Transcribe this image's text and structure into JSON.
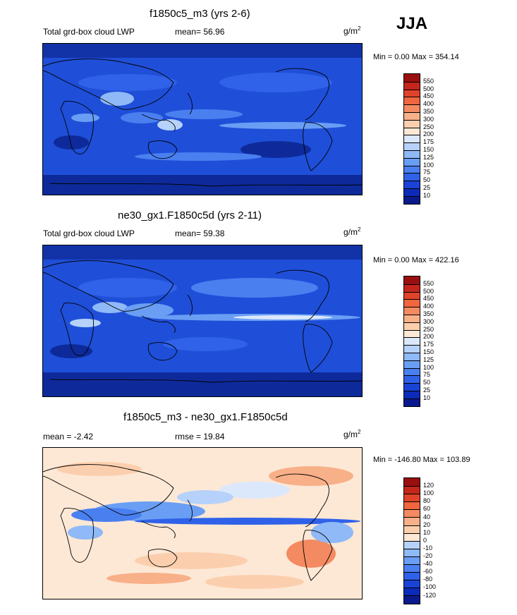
{
  "season": "JJA",
  "colors": {
    "abs_scale": [
      "#0a1a8c",
      "#0b2bb8",
      "#1a43d6",
      "#2f62e8",
      "#4a7ff0",
      "#6a9ef4",
      "#8fb9f7",
      "#b6d2fa",
      "#dbe8fc",
      "#fde8d6",
      "#fbcfae",
      "#f8b088",
      "#f48a61",
      "#ef6640",
      "#e0432a",
      "#c4261c",
      "#9a0f10"
    ],
    "diff_scale": [
      "#0a1a8c",
      "#0b2bb8",
      "#1a43d6",
      "#2f62e8",
      "#4a7ff0",
      "#6a9ef4",
      "#8fb9f7",
      "#b6d2fa",
      "#dbe8fc",
      "#fde8d6",
      "#fbcfae",
      "#f8b088",
      "#f48a61",
      "#ef6640",
      "#e0432a",
      "#c4261c",
      "#9a0f10"
    ]
  },
  "panels": [
    {
      "title": "f1850c5_m3 (yrs 2-6)",
      "left_label": "Total grd-box cloud LWP",
      "mean_label": "mean=  56.96",
      "units": "g/m",
      "units_sup": "2",
      "minmax": "Min =   0.00 Max = 354.14",
      "levels": [
        "550",
        "500",
        "450",
        "400",
        "350",
        "300",
        "250",
        "200",
        "175",
        "150",
        "125",
        "100",
        "75",
        "50",
        "25",
        "10"
      ],
      "mean_value": 56.96
    },
    {
      "title": "ne30_gx1.F1850c5d (yrs 2-11)",
      "left_label": "Total grd-box cloud LWP",
      "mean_label": "mean=  59.38",
      "units": "g/m",
      "units_sup": "2",
      "minmax": "Min =   0.00 Max = 422.16",
      "levels": [
        "550",
        "500",
        "450",
        "400",
        "350",
        "300",
        "250",
        "200",
        "175",
        "150",
        "125",
        "100",
        "75",
        "50",
        "25",
        "10"
      ],
      "mean_value": 59.38
    },
    {
      "title": "f1850c5_m3 - ne30_gx1.F1850c5d",
      "left_label": "mean =  -2.42",
      "mean_label": "rmse =  19.84",
      "units": "g/m",
      "units_sup": "2",
      "minmax": "Min = -146.80 Max = 103.89",
      "levels": [
        "120",
        "100",
        "80",
        "60",
        "40",
        "20",
        "10",
        "0",
        "-10",
        "-20",
        "-40",
        "-60",
        "-80",
        "-100",
        "-120"
      ],
      "mean_value": -2.42
    }
  ]
}
